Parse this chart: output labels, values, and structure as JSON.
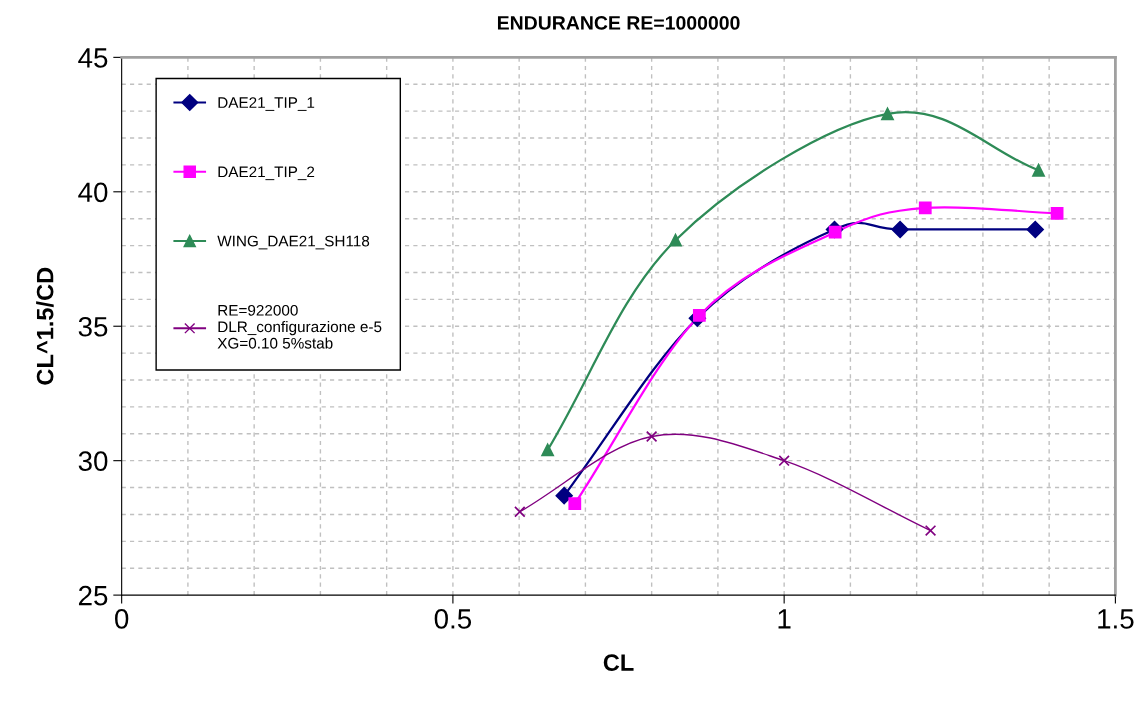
{
  "chart_data": {
    "type": "line",
    "title": "ENDURANCE RE=1000000",
    "xlabel": "CL",
    "ylabel": "CL^1.5/CD",
    "xlim": [
      0,
      1.5
    ],
    "ylim": [
      25,
      45
    ],
    "xticks": [
      0,
      0.5,
      1,
      1.5
    ],
    "yticks": [
      25,
      30,
      35,
      40,
      45
    ],
    "grid": true,
    "legend": "top left",
    "line_style": "solid",
    "series": [
      {
        "name": "DAE21_TIP_1",
        "color": "#000080",
        "marker": "diamond",
        "x": [
          0.668,
          0.869,
          1.076,
          1.175,
          1.379
        ],
        "values": [
          28.7,
          35.3,
          38.6,
          38.6,
          38.6
        ]
      },
      {
        "name": "DAE21_TIP_2",
        "color": "#ff00ff",
        "marker": "square",
        "x": [
          0.684,
          0.872,
          1.077,
          1.213,
          1.412
        ],
        "values": [
          28.4,
          35.4,
          38.5,
          39.4,
          39.2
        ]
      },
      {
        "name": "WING_DAE21_SH118",
        "color": "#2e8b57",
        "marker": "triangle",
        "x": [
          0.643,
          0.836,
          1.156,
          1.384
        ],
        "values": [
          30.4,
          38.2,
          42.9,
          40.8
        ]
      },
      {
        "name": "RE=922000\nDLR_configurazione e-5\nXG=0.10 5%stab",
        "color": "#800080",
        "marker": "cross",
        "x": [
          0.601,
          0.8,
          1.0,
          1.221
        ],
        "values": [
          28.1,
          30.9,
          30.0,
          27.4
        ]
      }
    ]
  }
}
